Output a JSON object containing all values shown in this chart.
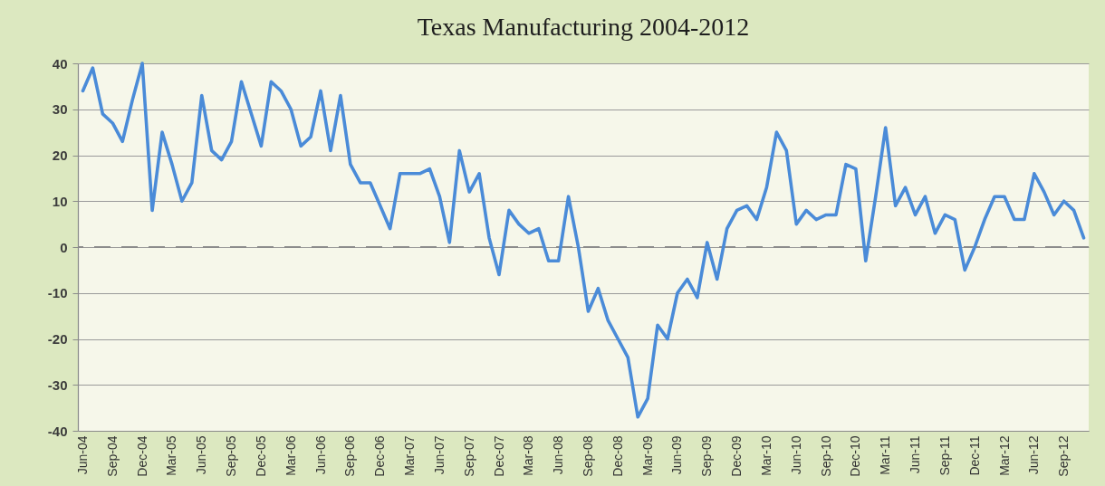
{
  "chart_data": {
    "type": "line",
    "title": "Texas Manufacturing 2004-2012",
    "categories": [
      "Jun-04",
      null,
      null,
      "Sep-04",
      null,
      null,
      "Dec-04",
      null,
      null,
      "Mar-05",
      null,
      null,
      "Jun-05",
      null,
      null,
      "Sep-05",
      null,
      null,
      "Dec-05",
      null,
      null,
      "Mar-06",
      null,
      null,
      "Jun-06",
      null,
      null,
      "Sep-06",
      null,
      null,
      "Dec-06",
      null,
      null,
      "Mar-07",
      null,
      null,
      "Jun-07",
      null,
      null,
      "Sep-07",
      null,
      null,
      "Dec-07",
      null,
      null,
      "Mar-08",
      null,
      null,
      "Jun-08",
      null,
      null,
      "Sep-08",
      null,
      null,
      "Dec-08",
      null,
      null,
      "Mar-09",
      null,
      null,
      "Jun-09",
      null,
      null,
      "Sep-09",
      null,
      null,
      "Dec-09",
      null,
      null,
      "Mar-10",
      null,
      null,
      "Jun-10",
      null,
      null,
      "Sep-10",
      null,
      null,
      "Dec-10",
      null,
      null,
      "Mar-11",
      null,
      null,
      "Jun-11",
      null,
      null,
      "Sep-11",
      null,
      null,
      "Dec-11",
      null,
      null,
      "Mar-12",
      null,
      null,
      "Jun-12",
      null,
      null,
      "Sep-12",
      null,
      null
    ],
    "series": [
      {
        "color": "#4a8bd8",
        "values": [
          34,
          39,
          29,
          27,
          23,
          32,
          40,
          8,
          25,
          18,
          10,
          14,
          33,
          21,
          19,
          23,
          36,
          29,
          22,
          36,
          34,
          30,
          22,
          24,
          34,
          21,
          33,
          18,
          14,
          14,
          9,
          4,
          16,
          16,
          16,
          17,
          11,
          1,
          21,
          12,
          16,
          2,
          -6,
          8,
          5,
          3,
          4,
          -3,
          -3,
          11,
          0,
          -14,
          -9,
          -16,
          -20,
          -24,
          -37,
          -33,
          -17,
          -20,
          -10,
          -7,
          -11,
          1,
          -7,
          4,
          8,
          9,
          6,
          13,
          25,
          21,
          5,
          8,
          6,
          7,
          7,
          18,
          17,
          -3,
          11,
          26,
          9,
          13,
          7,
          11,
          3,
          7,
          6,
          -5,
          0,
          6,
          11,
          11,
          6,
          6,
          16,
          12,
          7,
          10,
          8,
          2
        ]
      }
    ],
    "ylim": [
      -40,
      40
    ],
    "yticks": [
      -40,
      -30,
      -20,
      -10,
      0,
      10,
      20,
      30,
      40
    ],
    "grid": "y",
    "line_style": "solid",
    "ref_lines": [
      {
        "axis": "y",
        "value": 0,
        "color": "#8c8c8c",
        "line_style": "dashed"
      }
    ]
  }
}
